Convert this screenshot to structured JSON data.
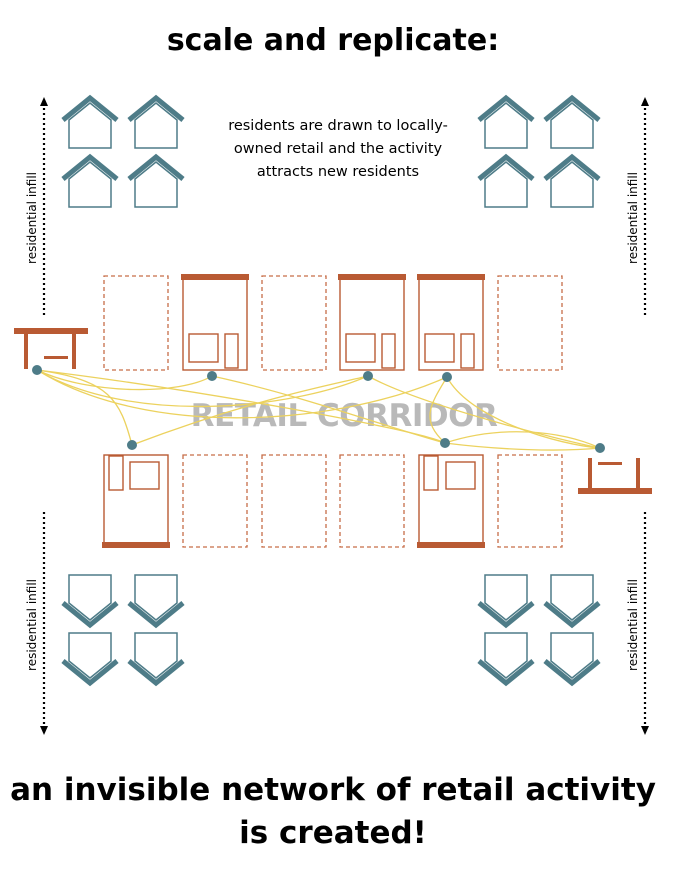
{
  "title": "scale and replicate:",
  "caption": [
    "residents are drawn to locally-",
    "owned retail and the activity",
    "attracts new residents"
  ],
  "side_label": "residential infill",
  "corridor_label": "RETAIL CORRIDOR",
  "conclusion": [
    "an invisible network of retail activity",
    "is created!"
  ],
  "colors": {
    "retail": "#b95a33",
    "house": "#4e7c88",
    "network": "#ecd25e",
    "node": "#4e7c88",
    "corridor_text": "#b9b9b9"
  }
}
